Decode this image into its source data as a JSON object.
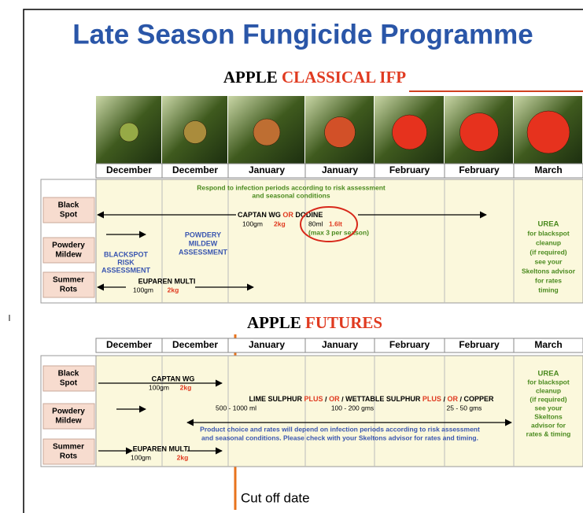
{
  "title": "Late Season Fungicide Programme",
  "stray_mark": "l",
  "classical": {
    "heading": [
      "APPLE",
      "CLASSICAL IFP"
    ],
    "months": [
      "December",
      "December",
      "January",
      "January",
      "February",
      "February",
      "March"
    ],
    "row_labels": [
      [
        "Black",
        "Spot"
      ],
      [
        "Powdery",
        "Mildew"
      ],
      [
        "Summer",
        "Rots"
      ]
    ],
    "respond_note": [
      "Respond to infection periods according to risk assessment",
      "and seasonal conditions"
    ],
    "captan": {
      "name": "CAPTAN WG",
      "or": "OR",
      "dodine": "DODINE",
      "captan_rate": [
        "100gm",
        "2kg"
      ],
      "dodine_rate": [
        "80ml",
        "1.6lt"
      ],
      "max": "(max 3 per season)"
    },
    "powdery_assessment": [
      "POWDERY",
      "MILDEW",
      "ASSESSMENT"
    ],
    "blackspot_assessment": [
      "BLACKSPOT",
      "RISK",
      "ASSESSMENT"
    ],
    "euparen": {
      "name": "EUPAREN MULTI",
      "rate": [
        "100gm",
        "2kg"
      ]
    },
    "urea": [
      "UREA",
      "for blackspot",
      "cleanup",
      "(if required)",
      "see your",
      "Skeltons advisor",
      "for rates",
      "timing"
    ]
  },
  "futures": {
    "heading": [
      "APPLE",
      "FUTURES"
    ],
    "months": [
      "December",
      "December",
      "January",
      "January",
      "February",
      "February",
      "March"
    ],
    "row_labels": [
      [
        "Black",
        "Spot"
      ],
      [
        "Powdery",
        "Mildew"
      ],
      [
        "Summer",
        "Rots"
      ]
    ],
    "captan": {
      "name": "CAPTAN WG",
      "rate": [
        "100gm",
        "2kg"
      ]
    },
    "sulphur": [
      "LIME SULPHUR",
      "PLUS",
      "OR",
      "WETTABLE SULPHUR",
      "PLUS",
      "OR",
      "COPPER"
    ],
    "sulphur_rates": [
      "500 - 1000 ml",
      "100 - 200 gms",
      "25 - 50 gms"
    ],
    "product_note": [
      "Product choice and rates will depend on infection periods according to risk assessment",
      "and seasonal conditions. Please check with your Skeltons advisor for rates and timing."
    ],
    "euparen": {
      "name": "EUPAREN MULTI",
      "rate": [
        "100gm",
        "2kg"
      ]
    },
    "urea": [
      "UREA",
      "for blackspot",
      "cleanup",
      "(if required)",
      "see your",
      "Skeltons",
      "advisor for",
      "rates & timing"
    ]
  },
  "cut_off": "Cut off date"
}
